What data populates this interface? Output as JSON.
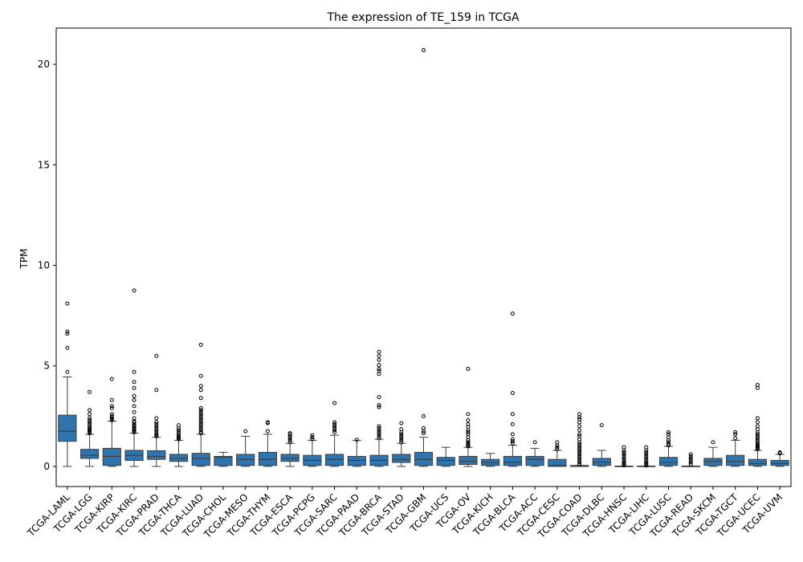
{
  "chart_data": {
    "type": "box",
    "title": "The expression of TE_159 in TCGA",
    "xlabel": "",
    "ylabel": "TPM",
    "ylim": [
      -1,
      21.8
    ],
    "yticks": [
      0,
      5,
      10,
      15,
      20
    ],
    "color": "#2e75b0",
    "categories": [
      "TCGA-LAML",
      "TCGA-LGG",
      "TCGA-KIRP",
      "TCGA-KIRC",
      "TCGA-PRAD",
      "TCGA-THCA",
      "TCGA-LUAD",
      "TCGA-CHOL",
      "TCGA-MESO",
      "TCGA-THYM",
      "TCGA-ESCA",
      "TCGA-PCPG",
      "TCGA-SARC",
      "TCGA-PAAD",
      "TCGA-BRCA",
      "TCGA-STAD",
      "TCGA-GBM",
      "TCGA-UCS",
      "TCGA-OV",
      "TCGA-KICH",
      "TCGA-BLCA",
      "TCGA-ACC",
      "TCGA-CESC",
      "TCGA-COAD",
      "TCGA-DLBC",
      "TCGA-HNSC",
      "TCGA-LIHC",
      "TCGA-LUSC",
      "TCGA-READ",
      "TCGA-SKCM",
      "TCGA-TGCT",
      "TCGA-UCEC",
      "TCGA-UVM"
    ],
    "boxes": [
      {
        "min": 0.0,
        "q1": 1.25,
        "median": 1.75,
        "q3": 2.55,
        "max": 4.45,
        "outliers": [
          4.7,
          5.9,
          6.6,
          6.7,
          8.1
        ]
      },
      {
        "min": 0.0,
        "q1": 0.4,
        "median": 0.55,
        "q3": 0.85,
        "max": 1.6,
        "outliers": [
          1.65,
          1.7,
          1.75,
          1.8,
          1.85,
          1.9,
          2.0,
          2.1,
          2.2,
          2.3,
          2.4,
          2.6,
          2.8,
          3.7
        ]
      },
      {
        "min": 0.0,
        "q1": 0.05,
        "median": 0.5,
        "q3": 0.9,
        "max": 2.25,
        "outliers": [
          2.3,
          2.35,
          2.4,
          2.5,
          2.6,
          2.9,
          3.0,
          3.3,
          4.35
        ]
      },
      {
        "min": 0.0,
        "q1": 0.3,
        "median": 0.55,
        "q3": 0.8,
        "max": 1.65,
        "outliers": [
          1.7,
          1.75,
          1.8,
          1.85,
          1.9,
          2.0,
          2.05,
          2.1,
          2.2,
          2.25,
          2.4,
          2.7,
          3.0,
          3.3,
          3.5,
          3.9,
          4.2,
          4.7,
          8.75
        ]
      },
      {
        "min": 0.0,
        "q1": 0.35,
        "median": 0.5,
        "q3": 0.78,
        "max": 1.45,
        "outliers": [
          1.5,
          1.55,
          1.6,
          1.7,
          1.8,
          1.9,
          2.0,
          2.1,
          2.2,
          2.4,
          3.8,
          5.5
        ]
      },
      {
        "min": 0.0,
        "q1": 0.25,
        "median": 0.4,
        "q3": 0.6,
        "max": 1.3,
        "outliers": [
          1.35,
          1.4,
          1.45,
          1.5,
          1.6,
          1.7,
          1.8,
          1.9,
          2.05
        ]
      },
      {
        "min": 0.0,
        "q1": 0.05,
        "median": 0.4,
        "q3": 0.65,
        "max": 1.6,
        "outliers": [
          1.65,
          1.7,
          1.8,
          1.9,
          2.0,
          2.1,
          2.2,
          2.3,
          2.4,
          2.5,
          2.6,
          2.7,
          2.8,
          2.9,
          3.4,
          3.8,
          4.0,
          4.5,
          6.05
        ]
      },
      {
        "min": 0.0,
        "q1": 0.05,
        "median": 0.45,
        "q3": 0.5,
        "max": 0.7,
        "outliers": []
      },
      {
        "min": 0.0,
        "q1": 0.05,
        "median": 0.35,
        "q3": 0.6,
        "max": 1.5,
        "outliers": [
          1.75
        ]
      },
      {
        "min": 0.0,
        "q1": 0.05,
        "median": 0.35,
        "q3": 0.7,
        "max": 1.6,
        "outliers": [
          1.75,
          2.15,
          2.2
        ]
      },
      {
        "min": 0.0,
        "q1": 0.25,
        "median": 0.4,
        "q3": 0.6,
        "max": 1.15,
        "outliers": [
          1.2,
          1.3,
          1.4,
          1.5,
          1.6,
          1.65
        ]
      },
      {
        "min": 0.0,
        "q1": 0.05,
        "median": 0.3,
        "q3": 0.55,
        "max": 1.3,
        "outliers": [
          1.35,
          1.45,
          1.55
        ]
      },
      {
        "min": 0.0,
        "q1": 0.05,
        "median": 0.35,
        "q3": 0.6,
        "max": 1.55,
        "outliers": [
          1.7,
          1.8,
          1.9,
          2.0,
          2.1,
          2.2,
          3.15
        ]
      },
      {
        "min": 0.0,
        "q1": 0.05,
        "median": 0.3,
        "q3": 0.5,
        "max": 1.3,
        "outliers": [
          1.32
        ]
      },
      {
        "min": 0.0,
        "q1": 0.05,
        "median": 0.3,
        "q3": 0.55,
        "max": 1.35,
        "outliers": [
          1.4,
          1.5,
          1.6,
          1.7,
          1.8,
          1.9,
          2.0,
          2.95,
          3.05,
          3.45,
          4.6,
          4.75,
          4.85,
          5.05,
          5.3,
          5.5,
          5.7
        ]
      },
      {
        "min": 0.0,
        "q1": 0.2,
        "median": 0.35,
        "q3": 0.6,
        "max": 1.15,
        "outliers": [
          1.2,
          1.3,
          1.4,
          1.5,
          1.6,
          1.7,
          1.85,
          2.15
        ]
      },
      {
        "min": 0.0,
        "q1": 0.05,
        "median": 0.35,
        "q3": 0.7,
        "max": 1.45,
        "outliers": [
          1.65,
          1.75,
          1.9,
          2.5,
          20.7
        ]
      },
      {
        "min": 0.0,
        "q1": 0.05,
        "median": 0.3,
        "q3": 0.45,
        "max": 0.95,
        "outliers": []
      },
      {
        "min": 0.0,
        "q1": 0.1,
        "median": 0.25,
        "q3": 0.5,
        "max": 0.95,
        "outliers": [
          1.0,
          1.05,
          1.1,
          1.15,
          1.2,
          1.3,
          1.45,
          1.6,
          1.7,
          1.8,
          1.95,
          2.1,
          2.3,
          2.6,
          4.85
        ]
      },
      {
        "min": 0.0,
        "q1": 0.05,
        "median": 0.2,
        "q3": 0.35,
        "max": 0.65,
        "outliers": []
      },
      {
        "min": 0.0,
        "q1": 0.05,
        "median": 0.2,
        "q3": 0.5,
        "max": 1.05,
        "outliers": [
          1.15,
          1.25,
          1.35,
          1.6,
          2.1,
          2.6,
          3.65,
          7.6
        ]
      },
      {
        "min": 0.0,
        "q1": 0.05,
        "median": 0.35,
        "q3": 0.5,
        "max": 0.9,
        "outliers": [
          1.2
        ]
      },
      {
        "min": 0.0,
        "q1": 0.0,
        "median": 0.05,
        "q3": 0.35,
        "max": 0.8,
        "outliers": [
          0.85,
          0.95,
          1.05,
          1.2
        ]
      },
      {
        "min": 0.0,
        "q1": 0.0,
        "median": 0.0,
        "q3": 0.05,
        "max": 0.05,
        "outliers": [
          0.1,
          0.2,
          0.3,
          0.4,
          0.5,
          0.6,
          0.7,
          0.8,
          0.9,
          1.0,
          1.1,
          1.2,
          1.35,
          1.5,
          1.6,
          1.8,
          2.0,
          2.2,
          2.35,
          2.45,
          2.6
        ]
      },
      {
        "min": 0.0,
        "q1": 0.05,
        "median": 0.2,
        "q3": 0.4,
        "max": 0.8,
        "outliers": [
          2.05
        ]
      },
      {
        "min": 0.0,
        "q1": 0.0,
        "median": 0.0,
        "q3": 0.02,
        "max": 0.02,
        "outliers": [
          0.05,
          0.1,
          0.15,
          0.2,
          0.3,
          0.4,
          0.5,
          0.6,
          0.7,
          0.8,
          0.95
        ]
      },
      {
        "min": 0.0,
        "q1": 0.0,
        "median": 0.0,
        "q3": 0.02,
        "max": 0.02,
        "outliers": [
          0.05,
          0.1,
          0.15,
          0.2,
          0.3,
          0.4,
          0.5,
          0.6,
          0.7,
          0.8,
          0.95
        ]
      },
      {
        "min": 0.0,
        "q1": 0.05,
        "median": 0.2,
        "q3": 0.45,
        "max": 1.0,
        "outliers": [
          1.05,
          1.1,
          1.2,
          1.3,
          1.45,
          1.6,
          1.7
        ]
      },
      {
        "min": 0.0,
        "q1": 0.0,
        "median": 0.0,
        "q3": 0.02,
        "max": 0.02,
        "outliers": [
          0.1,
          0.2,
          0.3,
          0.4,
          0.5,
          0.6
        ]
      },
      {
        "min": 0.0,
        "q1": 0.05,
        "median": 0.25,
        "q3": 0.4,
        "max": 0.95,
        "outliers": [
          1.2
        ]
      },
      {
        "min": 0.0,
        "q1": 0.05,
        "median": 0.25,
        "q3": 0.55,
        "max": 1.3,
        "outliers": [
          1.4,
          1.6,
          1.7
        ]
      },
      {
        "min": 0.0,
        "q1": 0.05,
        "median": 0.15,
        "q3": 0.35,
        "max": 0.8,
        "outliers": [
          0.85,
          0.9,
          0.95,
          1.0,
          1.05,
          1.1,
          1.2,
          1.3,
          1.4,
          1.5,
          1.6,
          1.7,
          1.85,
          2.0,
          2.2,
          2.4,
          3.9,
          4.05
        ]
      },
      {
        "min": 0.0,
        "q1": 0.05,
        "median": 0.15,
        "q3": 0.3,
        "max": 0.6,
        "outliers": [
          0.65,
          0.7
        ]
      }
    ]
  }
}
